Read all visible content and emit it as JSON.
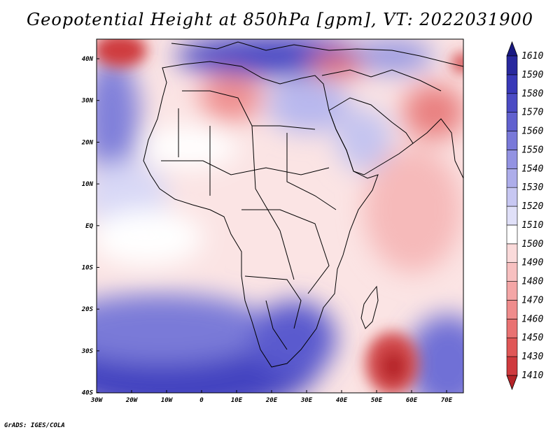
{
  "title": "Geopotential Height at 850hPa [gpm], VT: 2022031900",
  "credit": "GrADS: IGES/COLA",
  "map": {
    "lon_ticks": [
      "30W",
      "20W",
      "10W",
      "0",
      "10E",
      "20E",
      "30E",
      "40E",
      "50E",
      "60E",
      "70E"
    ],
    "lat_ticks": [
      "40N",
      "30N",
      "20N",
      "10N",
      "EQ",
      "10S",
      "20S",
      "30S",
      "40S"
    ]
  },
  "colorbar": {
    "labels": [
      "1410",
      "1430",
      "1450",
      "1460",
      "1470",
      "1480",
      "1490",
      "1500",
      "1510",
      "1520",
      "1530",
      "1540",
      "1550",
      "1560",
      "1570",
      "1580",
      "1590",
      "1610"
    ],
    "colors": [
      "#b52428",
      "#cf3a3e",
      "#e05757",
      "#e97272",
      "#ef8c8c",
      "#f4a6a6",
      "#f7c0c0",
      "#fadada",
      "#ffffff",
      "#e0e0f8",
      "#c7c7f2",
      "#adadea",
      "#9393e2",
      "#7979d9",
      "#6161cf",
      "#4b4bc4",
      "#3838b8",
      "#28289e",
      "#191982"
    ]
  }
}
